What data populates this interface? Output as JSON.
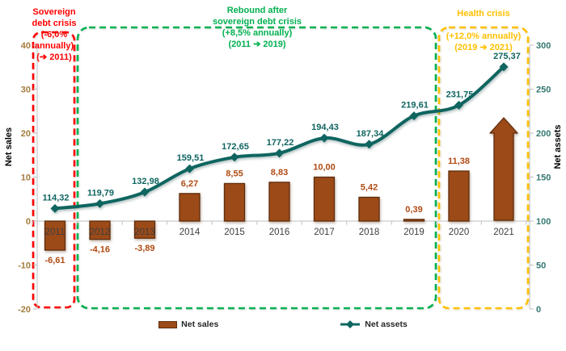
{
  "figure": {
    "background": "#FFFFFF"
  },
  "left_axis": {
    "label": "Net sales",
    "ticks": [
      "40",
      "30",
      "20",
      "10",
      "0",
      "-10",
      "-20"
    ],
    "tick_values": [
      40,
      30,
      20,
      10,
      0,
      -10,
      -20
    ],
    "tick_color": "#A57C3E",
    "label_color": "#9C6428"
  },
  "right_axis": {
    "label": "Net assets",
    "ticks": [
      "300",
      "250",
      "200",
      "150",
      "100",
      "50",
      "0"
    ],
    "tick_values": [
      300,
      250,
      200,
      150,
      100,
      50,
      0
    ],
    "tick_color": "#357872",
    "label_color": "#2F7A72"
  },
  "chart_data": {
    "type": "bar+line combo",
    "categories": [
      "2011",
      "2012",
      "2013",
      "2014",
      "2015",
      "2016",
      "2017",
      "2018",
      "2019",
      "2020",
      "2021"
    ],
    "category_label_color": "#3F3F3F",
    "series": [
      {
        "name": "Net sales",
        "type": "bar",
        "axis": "left",
        "color": "#9C4A18",
        "border_color": "#5E2D0C",
        "label_color": "#B04A12",
        "values": [
          -6.61,
          -4.16,
          -3.89,
          6.27,
          8.55,
          8.83,
          10.0,
          5.42,
          0.39,
          11.38,
          null
        ],
        "labels": [
          "-6,61",
          "-4,16",
          "-3,89",
          "6,27",
          "8,55",
          "8,83",
          "10,00",
          "5,42",
          "0,39",
          "11,38",
          ""
        ],
        "note": "2021 value shown as upward growth arrow instead of bar"
      },
      {
        "name": "Net assets",
        "type": "line",
        "axis": "right",
        "color": "#0F6560",
        "label_color": "#0F6560",
        "values": [
          114.32,
          119.79,
          132.98,
          159.51,
          172.65,
          177.22,
          194.43,
          187.34,
          219.61,
          231.75,
          275.37
        ],
        "labels": [
          "114,32",
          "119,79",
          "132,98",
          "159,51",
          "172,65",
          "177,22",
          "194,43",
          "187,34",
          "219,61",
          "231,75",
          "275,37"
        ]
      }
    ],
    "left_axis_range": [
      -20,
      40
    ],
    "right_axis_range": [
      0,
      300
    ],
    "grid": false,
    "legend_position": "bottom"
  },
  "annotations": [
    {
      "id": "sovereign-debt-crisis",
      "color": "#FF0000",
      "lines": [
        "Sovereign",
        "debt crisis",
        "(-6,0%",
        "annually)",
        "(➔ 2011)"
      ]
    },
    {
      "id": "rebound-after-crisis",
      "color": "#00B050",
      "lines": [
        "Rebound after",
        "sovereign debt crisis",
        "(+8,5% annually)",
        "(2011 ➔ 2019)"
      ]
    },
    {
      "id": "health-crisis",
      "color": "#FFC000",
      "lines": [
        "Health crisis",
        "",
        "(+12,0% annually)",
        "(2019 ➔ 2021)"
      ]
    }
  ],
  "legend": {
    "items": [
      {
        "label": "Net sales",
        "type": "bar-swatch"
      },
      {
        "label": "Net assets",
        "type": "line-swatch"
      }
    ]
  }
}
